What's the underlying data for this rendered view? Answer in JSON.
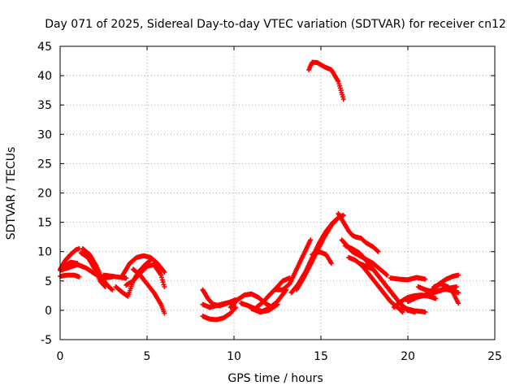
{
  "chart_data": {
    "type": "scatter",
    "title": "Day 071 of 2025, Sidereal Day-to-day VTEC variation (SDTVAR) for receiver cn12",
    "xlabel": "GPS time / hours",
    "ylabel": "SDTVAR / TECUs",
    "xlim": [
      0,
      25
    ],
    "ylim": [
      -5,
      45
    ],
    "x_ticks": [
      0,
      5,
      10,
      15,
      20,
      25
    ],
    "y_ticks": [
      -5,
      0,
      5,
      10,
      15,
      20,
      25,
      30,
      35,
      40,
      45
    ],
    "grid": true,
    "marker": "+",
    "color": "#ff0000",
    "series": [
      {
        "name": "track-1",
        "x": [
          0.0,
          0.3,
          0.6,
          0.9,
          1.1
        ],
        "y": [
          7,
          8.5,
          9.5,
          10.3,
          10.5
        ]
      },
      {
        "name": "track-2",
        "x": [
          0.0,
          0.4,
          0.8,
          1.1
        ],
        "y": [
          5.8,
          6,
          6,
          5.7
        ]
      },
      {
        "name": "track-3",
        "x": [
          0.0,
          0.5,
          1.0,
          1.5,
          2.0,
          2.5,
          3.0
        ],
        "y": [
          6.8,
          7.3,
          7.8,
          7.2,
          6.2,
          5.5,
          5.7
        ]
      },
      {
        "name": "track-4",
        "x": [
          0.2,
          0.6,
          1.0
        ],
        "y": [
          7.5,
          8.2,
          8.0
        ]
      },
      {
        "name": "track-5",
        "x": [
          1.3,
          1.7,
          2.1,
          2.4,
          2.8,
          3.0
        ],
        "y": [
          10.5,
          9.5,
          7.5,
          5.5,
          4.0,
          3.5
        ]
      },
      {
        "name": "track-6",
        "x": [
          1.2,
          1.6,
          2.0,
          2.3,
          2.6
        ],
        "y": [
          9.8,
          9,
          7,
          5,
          4
        ]
      },
      {
        "name": "track-7",
        "x": [
          2.5,
          3.0,
          3.5,
          3.8
        ],
        "y": [
          6,
          5.8,
          5.6,
          5.5
        ]
      },
      {
        "name": "track-8",
        "x": [
          3.2,
          3.6,
          3.9,
          4.2,
          4.5,
          4.9,
          5.3
        ],
        "y": [
          4,
          3,
          2.4,
          5,
          6.5,
          7.8,
          8.8
        ]
      },
      {
        "name": "track-9",
        "x": [
          3.6,
          4.0,
          4.4,
          4.8,
          5.2,
          5.6,
          6.0
        ],
        "y": [
          6,
          8,
          9,
          9.3,
          9,
          8,
          6.5
        ]
      },
      {
        "name": "track-10",
        "x": [
          3.8,
          4.2,
          4.6,
          5.0,
          5.4,
          5.8,
          6.0
        ],
        "y": [
          4.3,
          5,
          6.3,
          7.5,
          7.8,
          6,
          4
        ]
      },
      {
        "name": "track-11",
        "x": [
          4.2,
          4.6,
          5.0,
          5.4,
          5.8,
          6.0
        ],
        "y": [
          7,
          6,
          4.5,
          3,
          1,
          -0.5
        ]
      },
      {
        "name": "track-12",
        "x": [
          8.2,
          8.6,
          9.0,
          9.4,
          9.8,
          10.1
        ],
        "y": [
          -1,
          -1.5,
          -1.6,
          -1.3,
          -0.5,
          0.5
        ]
      },
      {
        "name": "track-13",
        "x": [
          8.2,
          8.5,
          8.8,
          9.2,
          9.6,
          10.1
        ],
        "y": [
          3.5,
          2,
          1,
          0.8,
          1.2,
          1.8
        ]
      },
      {
        "name": "track-14",
        "x": [
          8.2,
          8.6,
          9.0,
          9.5,
          10.0
        ],
        "y": [
          1,
          0.5,
          0.8,
          1.2,
          1.5
        ]
      },
      {
        "name": "track-15",
        "x": [
          9.8,
          10.2,
          10.6,
          11.0,
          11.4,
          11.8,
          12.2
        ],
        "y": [
          0.5,
          1.8,
          2.6,
          2.8,
          2.2,
          1.2,
          0.5
        ]
      },
      {
        "name": "track-16",
        "x": [
          10.4,
          10.8,
          11.2,
          11.6,
          12.0,
          12.5,
          13.0
        ],
        "y": [
          1.2,
          0.8,
          0.3,
          -0.2,
          0.3,
          1.5,
          3.5
        ]
      },
      {
        "name": "track-17",
        "x": [
          11.3,
          11.7,
          12.1,
          12.5,
          12.8,
          13.2
        ],
        "y": [
          0.5,
          1.5,
          2.8,
          4,
          5,
          5.5
        ]
      },
      {
        "name": "track-18",
        "x": [
          11.0,
          11.5,
          12.0,
          12.5
        ],
        "y": [
          0.3,
          -0.3,
          0,
          1
        ]
      },
      {
        "name": "track-19",
        "x": [
          12.4,
          12.8,
          13.2,
          13.6,
          14.0,
          14.4
        ],
        "y": [
          3.5,
          3.5,
          4.5,
          7,
          9.5,
          12
        ]
      },
      {
        "name": "track-20",
        "x": [
          13.3,
          13.7,
          14.1,
          14.5,
          14.9,
          15.3,
          15.7,
          16.1
        ],
        "y": [
          3,
          4.5,
          6.5,
          9,
          11.5,
          13.5,
          15,
          16
        ]
      },
      {
        "name": "track-21",
        "x": [
          13.6,
          14.0,
          14.4,
          14.8,
          15.2,
          15.6,
          16.0,
          16.3
        ],
        "y": [
          3.5,
          5.5,
          7.8,
          10.2,
          12.5,
          14.5,
          15.8,
          16.2
        ]
      },
      {
        "name": "track-22",
        "x": [
          14.5,
          14.9,
          15.3,
          15.6
        ],
        "y": [
          9.5,
          10,
          9.5,
          8
        ]
      },
      {
        "name": "track-23",
        "x": [
          14.3,
          14.5,
          14.8,
          15.2,
          15.6,
          16.0,
          16.3
        ],
        "y": [
          41,
          42.3,
          42.2,
          41.5,
          41,
          39,
          36
        ]
      },
      {
        "name": "track-24",
        "x": [
          16.0,
          16.2,
          16.4,
          16.6,
          16.8,
          17.0,
          17.3,
          17.6,
          18.0,
          18.3
        ],
        "y": [
          16.5,
          15.5,
          14.5,
          13.5,
          12.8,
          12.5,
          12.3,
          11.5,
          10.8,
          10
        ]
      },
      {
        "name": "track-25",
        "x": [
          16.2,
          16.5,
          16.8,
          17.1,
          17.4,
          17.7,
          18.0,
          18.4,
          18.8
        ],
        "y": [
          12,
          11,
          10,
          9.5,
          9,
          8.5,
          8,
          7,
          6
        ]
      },
      {
        "name": "track-26",
        "x": [
          16.6,
          17.0,
          17.4,
          17.8,
          18.2,
          18.6,
          19.0,
          19.4,
          19.7
        ],
        "y": [
          9,
          8.5,
          7.5,
          6,
          4.5,
          3,
          1.5,
          0.5,
          -0.3
        ]
      },
      {
        "name": "track-27",
        "x": [
          16.4,
          16.8,
          17.2,
          17.6,
          18.0,
          18.4,
          18.8,
          19.2,
          19.6,
          20.0
        ],
        "y": [
          11,
          10.5,
          9.8,
          8.5,
          7,
          5.5,
          4,
          2.5,
          1,
          0
        ]
      },
      {
        "name": "track-28",
        "x": [
          17.2,
          17.6,
          18.0,
          18.4,
          18.8,
          19.2,
          19.6,
          20.0,
          20.4
        ],
        "y": [
          8,
          7.5,
          7,
          5.5,
          4,
          2.5,
          1,
          0,
          -0.3
        ]
      },
      {
        "name": "track-29",
        "x": [
          19.6,
          20.0,
          20.4,
          20.8,
          21.0
        ],
        "y": [
          0.5,
          0.2,
          -0.1,
          -0.2,
          -0.3
        ]
      },
      {
        "name": "track-30",
        "x": [
          19.2,
          19.6,
          20.0,
          20.4,
          20.8,
          21.2,
          21.6
        ],
        "y": [
          0.5,
          1.5,
          2.2,
          2.5,
          2.6,
          2.4,
          2
        ]
      },
      {
        "name": "track-31",
        "x": [
          19.0,
          19.5,
          20.0,
          20.5,
          21.0
        ],
        "y": [
          5.5,
          5.3,
          5.2,
          5.6,
          5.3
        ]
      },
      {
        "name": "track-32",
        "x": [
          20.0,
          20.5,
          21.0,
          21.5,
          22.0,
          22.4,
          22.8
        ],
        "y": [
          1.5,
          2.2,
          2.6,
          3,
          3.5,
          3.8,
          4
        ]
      },
      {
        "name": "track-33",
        "x": [
          20.6,
          21.0,
          21.4,
          21.8,
          22.2,
          22.6,
          22.9
        ],
        "y": [
          4,
          3.5,
          3.2,
          3.4,
          3.6,
          3.3,
          3
        ]
      },
      {
        "name": "track-34",
        "x": [
          21.0,
          21.4,
          21.8,
          22.2,
          22.6,
          22.9
        ],
        "y": [
          2.5,
          3.5,
          4.5,
          5.3,
          5.8,
          6
        ]
      },
      {
        "name": "track-35",
        "x": [
          21.5,
          21.9,
          22.3,
          22.6,
          22.9
        ],
        "y": [
          4,
          4.5,
          4,
          3,
          1.2
        ]
      }
    ]
  }
}
